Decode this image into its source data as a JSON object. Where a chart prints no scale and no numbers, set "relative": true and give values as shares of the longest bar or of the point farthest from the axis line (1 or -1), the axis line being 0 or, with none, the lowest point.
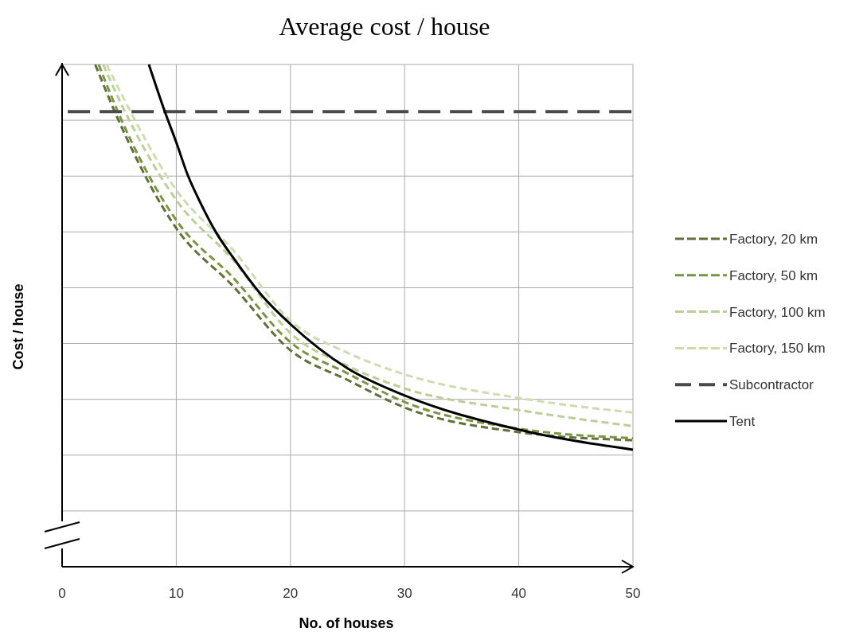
{
  "chart_data": {
    "type": "line",
    "title": "Average cost / house",
    "xlabel": "No. of houses",
    "ylabel": "Cost / house",
    "relative": true,
    "xlim": [
      0,
      50
    ],
    "xticks": [
      0,
      10,
      20,
      30,
      40,
      50
    ],
    "grid": true,
    "legend": "right",
    "marker": "none",
    "series": [
      {
        "name": "Factory, 20 km",
        "color": "#5f7038",
        "line_style": "dashed",
        "x": [
          2.9,
          5,
          10,
          15,
          20,
          25,
          30,
          40,
          50
        ],
        "values": [
          1,
          0.886,
          0.674,
          0.558,
          0.431,
          0.372,
          0.317,
          0.268,
          0.252
        ]
      },
      {
        "name": "Factory, 50 km",
        "color": "#7a9444",
        "line_style": "dashed",
        "x": [
          3.2,
          5,
          10,
          15,
          20,
          25,
          30,
          40,
          50
        ],
        "values": [
          1,
          0.9,
          0.69,
          0.575,
          0.447,
          0.385,
          0.328,
          0.275,
          0.256
        ]
      },
      {
        "name": "Factory, 100 km",
        "color": "#bccf98",
        "line_style": "dashed",
        "x": [
          3.6,
          5,
          10,
          15,
          20,
          25,
          30,
          40,
          50
        ],
        "values": [
          1,
          0.93,
          0.73,
          0.61,
          0.465,
          0.4,
          0.355,
          0.312,
          0.28
        ]
      },
      {
        "name": "Factory, 150 km",
        "color": "#cfdcb0",
        "line_style": "dashed",
        "x": [
          3.9,
          5,
          10,
          15,
          20,
          25,
          30,
          40,
          50
        ],
        "values": [
          1,
          0.95,
          0.75,
          0.63,
          0.49,
          0.426,
          0.383,
          0.336,
          0.307
        ]
      },
      {
        "name": "Subcontractor",
        "color": "#4a4a4a",
        "line_style": "dashed",
        "x": [
          0.5,
          50
        ],
        "values": [
          0.906,
          0.906
        ]
      },
      {
        "name": "Tent",
        "color": "#000000",
        "line_style": "solid",
        "x": [
          7.6,
          9,
          10,
          11,
          12,
          13.5,
          15,
          17.5,
          20,
          25,
          30,
          40,
          50
        ],
        "values": [
          1,
          0.906,
          0.845,
          0.78,
          0.73,
          0.665,
          0.615,
          0.54,
          0.483,
          0.395,
          0.341,
          0.273,
          0.233
        ]
      }
    ]
  }
}
